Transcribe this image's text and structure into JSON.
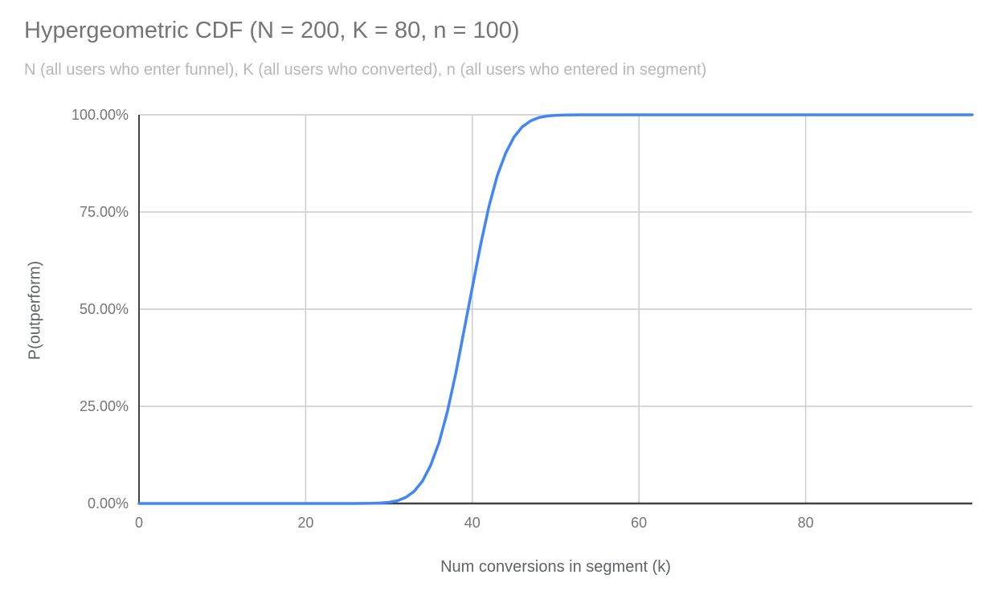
{
  "chart_data": {
    "type": "line",
    "title": "Hypergeometric CDF (N = 200, K = 80, n = 100)",
    "subtitle": "N (all users who enter funnel), K (all users who converted), n (all users who entered in segment)",
    "xlabel": "Num conversions in segment (k)",
    "ylabel": "P(outperform)",
    "xlim": [
      0,
      100
    ],
    "ylim": [
      0,
      1
    ],
    "grid": true,
    "legend": "none",
    "params": {
      "N": 200,
      "K": 80,
      "n": 100
    },
    "x_ticks": [
      0,
      20,
      40,
      60,
      80
    ],
    "x_tick_labels": [
      "0",
      "20",
      "40",
      "60",
      "80"
    ],
    "y_ticks": [
      0,
      0.25,
      0.5,
      0.75,
      1
    ],
    "y_tick_labels": [
      "0.00%",
      "25.00%",
      "50.00%",
      "75.00%",
      "100.00%"
    ],
    "series": [
      {
        "name": "P(outperform)",
        "x_start": 0,
        "x_step": 1,
        "values": [
          0,
          0,
          0,
          0,
          0,
          0,
          0,
          0,
          0,
          0,
          0,
          0,
          0,
          0,
          0,
          0,
          0,
          0,
          0,
          0,
          0,
          0,
          0,
          0,
          0,
          0,
          0.0001,
          0.0002,
          0.0005,
          0.0013,
          0.0032,
          0.0071,
          0.0154,
          0.0307,
          0.0571,
          0.0985,
          0.1562,
          0.2358,
          0.3336,
          0.4443,
          0.5557,
          0.6664,
          0.7642,
          0.8438,
          0.9015,
          0.9429,
          0.9693,
          0.9846,
          0.9929,
          0.9968,
          0.9987,
          0.9995,
          0.9998,
          0.9999,
          1,
          1,
          1,
          1,
          1,
          1,
          1,
          1,
          1,
          1,
          1,
          1,
          1,
          1,
          1,
          1,
          1,
          1,
          1,
          1,
          1,
          1,
          1,
          1,
          1,
          1,
          1,
          1,
          1,
          1,
          1,
          1,
          1,
          1,
          1,
          1,
          1,
          1,
          1,
          1,
          1,
          1,
          1,
          1,
          1,
          1,
          1
        ]
      }
    ],
    "colors": {
      "line": "#4285f4",
      "grid": "#cccccc",
      "axis": "#424242",
      "title": "#757575",
      "subtitle": "#b7b7b7",
      "tick_label": "#757575",
      "axis_title": "#5f6368",
      "background": "#ffffff"
    }
  }
}
